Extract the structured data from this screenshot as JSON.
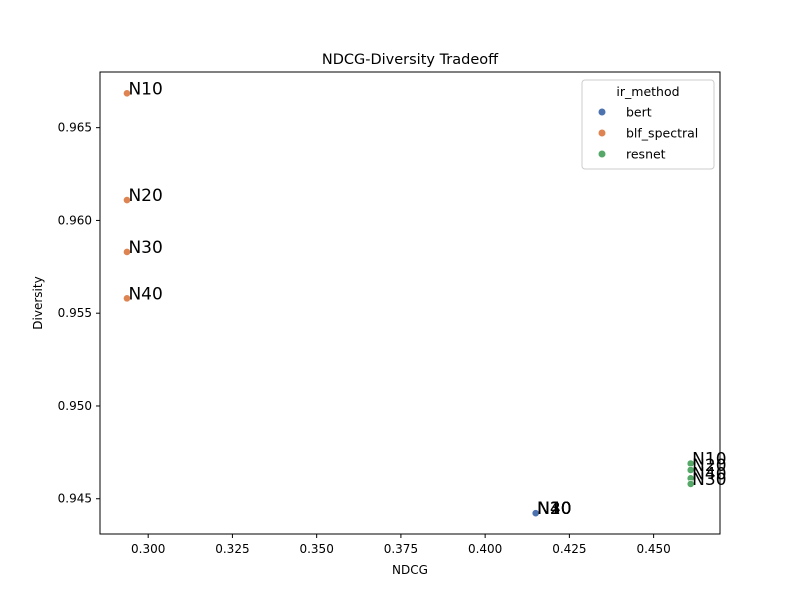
{
  "chart_data": {
    "type": "scatter",
    "title": "NDCG-Diversity Tradeoff",
    "xlabel": "NDCG",
    "ylabel": "Diversity",
    "xlim": [
      0.2857,
      0.4697
    ],
    "ylim": [
      0.9431,
      0.968
    ],
    "xticks": [
      0.3,
      0.325,
      0.35,
      0.375,
      0.4,
      0.425,
      0.45
    ],
    "xtick_labels": [
      "0.300",
      "0.325",
      "0.350",
      "0.375",
      "0.400",
      "0.425",
      "0.450"
    ],
    "yticks": [
      0.945,
      0.95,
      0.955,
      0.96,
      0.965
    ],
    "ytick_labels": [
      "0.945",
      "0.950",
      "0.955",
      "0.960",
      "0.965"
    ],
    "grid": false,
    "legend": {
      "title": "ir_method",
      "placement": "upper-right",
      "entries": [
        "bert",
        "blf_spectral",
        "resnet"
      ]
    },
    "colors": {
      "bert": "#4c72b0",
      "blf_spectral": "#dd8452",
      "resnet": "#55a868"
    },
    "series": [
      {
        "name": "bert",
        "points": [
          {
            "x": 0.415,
            "y": 0.94422,
            "label": "N10"
          },
          {
            "x": 0.415,
            "y": 0.94422,
            "label": "N20"
          },
          {
            "x": 0.415,
            "y": 0.94422,
            "label": "N30"
          },
          {
            "x": 0.415,
            "y": 0.94422,
            "label": "N40"
          }
        ]
      },
      {
        "name": "blf_spectral",
        "points": [
          {
            "x": 0.2937,
            "y": 0.96685,
            "label": "N10"
          },
          {
            "x": 0.2937,
            "y": 0.9611,
            "label": "N20"
          },
          {
            "x": 0.2937,
            "y": 0.9583,
            "label": "N30"
          },
          {
            "x": 0.2937,
            "y": 0.9558,
            "label": "N40"
          }
        ]
      },
      {
        "name": "resnet",
        "points": [
          {
            "x": 0.461,
            "y": 0.9469,
            "label": "N10"
          },
          {
            "x": 0.461,
            "y": 0.94655,
            "label": "N20"
          },
          {
            "x": 0.461,
            "y": 0.9461,
            "label": "N40"
          },
          {
            "x": 0.461,
            "y": 0.9458,
            "label": "N30"
          }
        ]
      }
    ]
  }
}
